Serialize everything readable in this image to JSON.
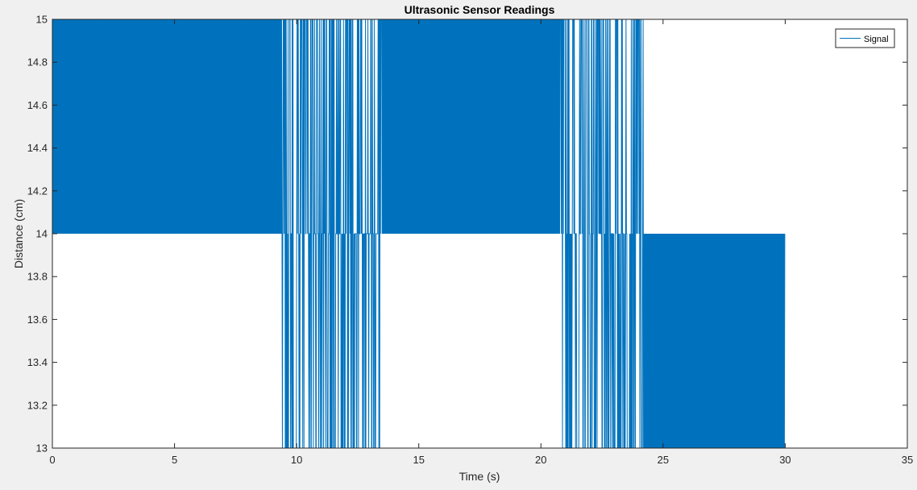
{
  "chart_data": {
    "type": "line",
    "title": "Ultrasonic Sensor Readings",
    "xlabel": "Time (s)",
    "ylabel": "Distance (cm)",
    "xlim": [
      0,
      35
    ],
    "ylim": [
      13,
      15
    ],
    "xticks": [
      0,
      5,
      10,
      15,
      20,
      25,
      30,
      35
    ],
    "yticks": [
      13,
      13.2,
      13.4,
      13.6,
      13.8,
      14,
      14.2,
      14.4,
      14.6,
      14.8,
      15
    ],
    "ytick_labels": [
      "13",
      "13.2",
      "13.4",
      "13.6",
      "13.8",
      "14",
      "14.2",
      "14.4",
      "14.6",
      "14.8",
      "15"
    ],
    "grid": false,
    "legend_position": "top-right",
    "series": [
      {
        "name": "Signal",
        "color": "#0072bd",
        "segments": [
          {
            "x_start": 0.0,
            "x_end": 9.4,
            "values_alternate": [
              14,
              15
            ]
          },
          {
            "x_start": 9.4,
            "x_end": 9.9,
            "values_alternate": [
              13,
              14,
              15
            ]
          },
          {
            "x_start": 9.9,
            "x_end": 13.5,
            "values_alternate": [
              14,
              15,
              13
            ]
          },
          {
            "x_start": 13.5,
            "x_end": 20.8,
            "values_alternate": [
              14,
              15
            ]
          },
          {
            "x_start": 20.8,
            "x_end": 24.2,
            "values_alternate": [
              13,
              14,
              15
            ]
          },
          {
            "x_start": 24.2,
            "x_end": 30.0,
            "values_alternate": [
              13,
              14
            ]
          }
        ]
      }
    ]
  }
}
